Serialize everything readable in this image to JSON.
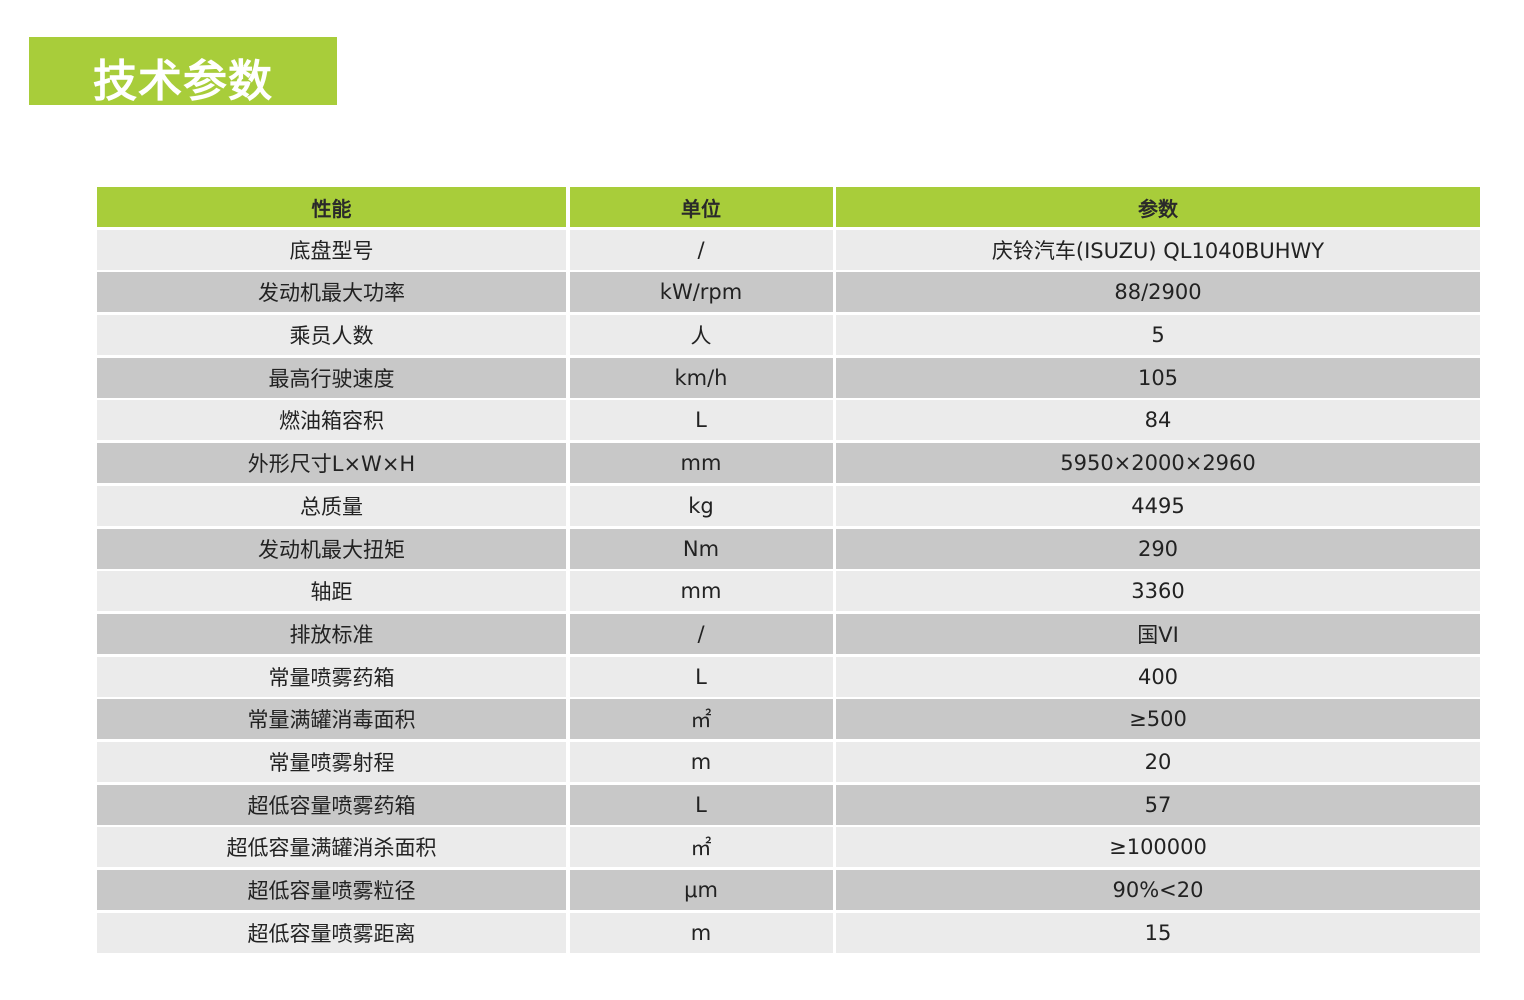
{
  "title": "技术参数",
  "colors": {
    "accent": "#a8cd3a",
    "row_light": "#ebebeb",
    "row_dark": "#c8c8c8"
  },
  "table": {
    "headers": [
      "性能",
      "单位",
      "参数"
    ],
    "rows": [
      [
        "底盘型号",
        "/",
        "庆铃汽车(ISUZU) QL1040BUHWY"
      ],
      [
        "发动机最大功率",
        "kW/rpm",
        "88/2900"
      ],
      [
        "乘员人数",
        "人",
        "5"
      ],
      [
        "最高行驶速度",
        "km/h",
        "105"
      ],
      [
        "燃油箱容积",
        "L",
        "84"
      ],
      [
        "外形尺寸L×W×H",
        "mm",
        "5950×2000×2960"
      ],
      [
        "总质量",
        "kg",
        "4495"
      ],
      [
        "发动机最大扭矩",
        "Nm",
        "290"
      ],
      [
        "轴距",
        "mm",
        "3360"
      ],
      [
        "排放标准",
        "/",
        "国VI"
      ],
      [
        "常量喷雾药箱",
        "L",
        "400"
      ],
      [
        "常量满罐消毒面积",
        "㎡",
        "≥500"
      ],
      [
        "常量喷雾射程",
        "m",
        "20"
      ],
      [
        "超低容量喷雾药箱",
        "L",
        "57"
      ],
      [
        "超低容量满罐消杀面积",
        "㎡",
        "≥100000"
      ],
      [
        "超低容量喷雾粒径",
        "μm",
        "90%<20"
      ],
      [
        "超低容量喷雾距离",
        "m",
        "15"
      ]
    ]
  }
}
